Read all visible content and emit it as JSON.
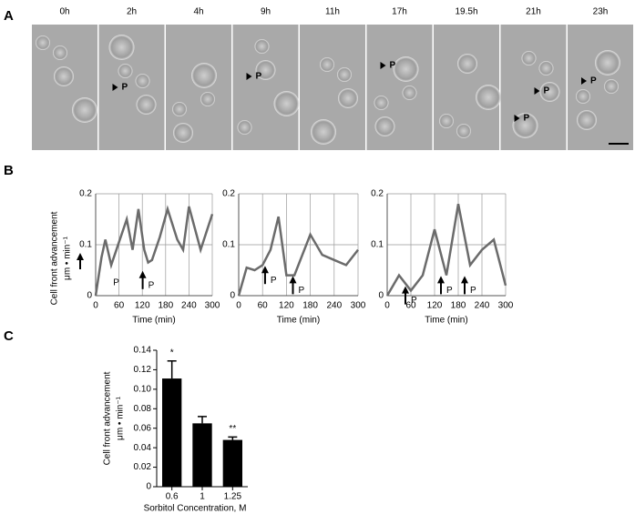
{
  "panels": [
    "A",
    "B",
    "C"
  ],
  "frames": [
    {
      "time": "0h",
      "marks": []
    },
    {
      "time": "2h",
      "marks": [
        "P"
      ]
    },
    {
      "time": "4h",
      "marks": []
    },
    {
      "time": "9h",
      "marks": [
        "P"
      ]
    },
    {
      "time": "11h",
      "marks": []
    },
    {
      "time": "17h",
      "marks": [
        "P"
      ]
    },
    {
      "time": "19.5h",
      "marks": []
    },
    {
      "time": "21h",
      "marks": [
        "P",
        "P"
      ]
    },
    {
      "time": "23h",
      "marks": [
        "P"
      ]
    }
  ],
  "chart_data": [
    {
      "type": "line",
      "ylabel": [
        "Cell front advancement",
        "μm • min⁻¹"
      ],
      "xlabel": "Time (min)",
      "x": [
        0,
        15,
        25,
        40,
        80,
        95,
        110,
        125,
        135,
        145,
        165,
        185,
        210,
        225,
        240,
        270,
        300
      ],
      "values": [
        0,
        0.075,
        0.11,
        0.06,
        0.15,
        0.09,
        0.17,
        0.09,
        0.065,
        0.07,
        0.115,
        0.17,
        0.11,
        0.09,
        0.175,
        0.09,
        0.16
      ],
      "color": "#6b6b6b",
      "xlim": [
        0,
        300
      ],
      "ylim": [
        0,
        0.2
      ],
      "xticks": [
        0,
        60,
        120,
        180,
        240,
        300
      ],
      "yticks": [
        0,
        0.1,
        0.2
      ],
      "grid": true,
      "annotations": [
        {
          "text": "P",
          "x": 45,
          "y": 0.025,
          "arrow": false
        },
        {
          "text": "P",
          "x": 135,
          "y": 0.02,
          "arrow": true
        }
      ]
    },
    {
      "type": "line",
      "xlabel": "Time (min)",
      "x": [
        0,
        20,
        40,
        60,
        80,
        100,
        120,
        140,
        160,
        180,
        210,
        240,
        270,
        300
      ],
      "values": [
        0,
        0.055,
        0.05,
        0.06,
        0.09,
        0.155,
        0.04,
        0.04,
        0.08,
        0.12,
        0.08,
        0.07,
        0.06,
        0.09
      ],
      "color": "#6b6b6b",
      "xlim": [
        0,
        300
      ],
      "ylim": [
        0,
        0.2
      ],
      "xticks": [
        0,
        60,
        120,
        180,
        240,
        300
      ],
      "yticks": [
        0,
        0.1,
        0.2
      ],
      "grid": true,
      "annotations": [
        {
          "text": "P",
          "x": 80,
          "y": 0.03,
          "arrow": true
        },
        {
          "text": "P",
          "x": 150,
          "y": 0.01,
          "arrow": true
        }
      ]
    },
    {
      "type": "line",
      "xlabel": "Time (min)",
      "x": [
        0,
        30,
        60,
        90,
        120,
        150,
        180,
        210,
        240,
        270,
        300
      ],
      "values": [
        0,
        0.04,
        0.01,
        0.04,
        0.13,
        0.04,
        0.18,
        0.06,
        0.09,
        0.11,
        0.02
      ],
      "color": "#6b6b6b",
      "xlim": [
        0,
        300
      ],
      "ylim": [
        0,
        0.2
      ],
      "xticks": [
        0,
        60,
        120,
        180,
        240,
        300
      ],
      "yticks": [
        0,
        0.1,
        0.2
      ],
      "grid": true,
      "annotations": [
        {
          "text": "P",
          "x": 60,
          "y": -0.01,
          "arrow": true
        },
        {
          "text": "P",
          "x": 150,
          "y": 0.01,
          "arrow": true
        },
        {
          "text": "P",
          "x": 210,
          "y": 0.01,
          "arrow": true
        }
      ]
    },
    {
      "type": "bar",
      "ylabel": [
        "Cell front advancement",
        "μm • min⁻¹"
      ],
      "xlabel": "Sorbitol Concentration, M",
      "categories": [
        "0.6",
        "1",
        "1.25"
      ],
      "values": [
        0.111,
        0.065,
        0.048
      ],
      "errors": [
        0.018,
        0.007,
        0.003
      ],
      "significance": [
        "*",
        null,
        "**"
      ],
      "color": "#000000",
      "ylim": [
        0,
        0.14
      ],
      "yticks": [
        0,
        0.02,
        0.04,
        0.06,
        0.08,
        {
          "value": 0.1,
          "label": "0.10"
        },
        0.12,
        0.14
      ]
    }
  ]
}
